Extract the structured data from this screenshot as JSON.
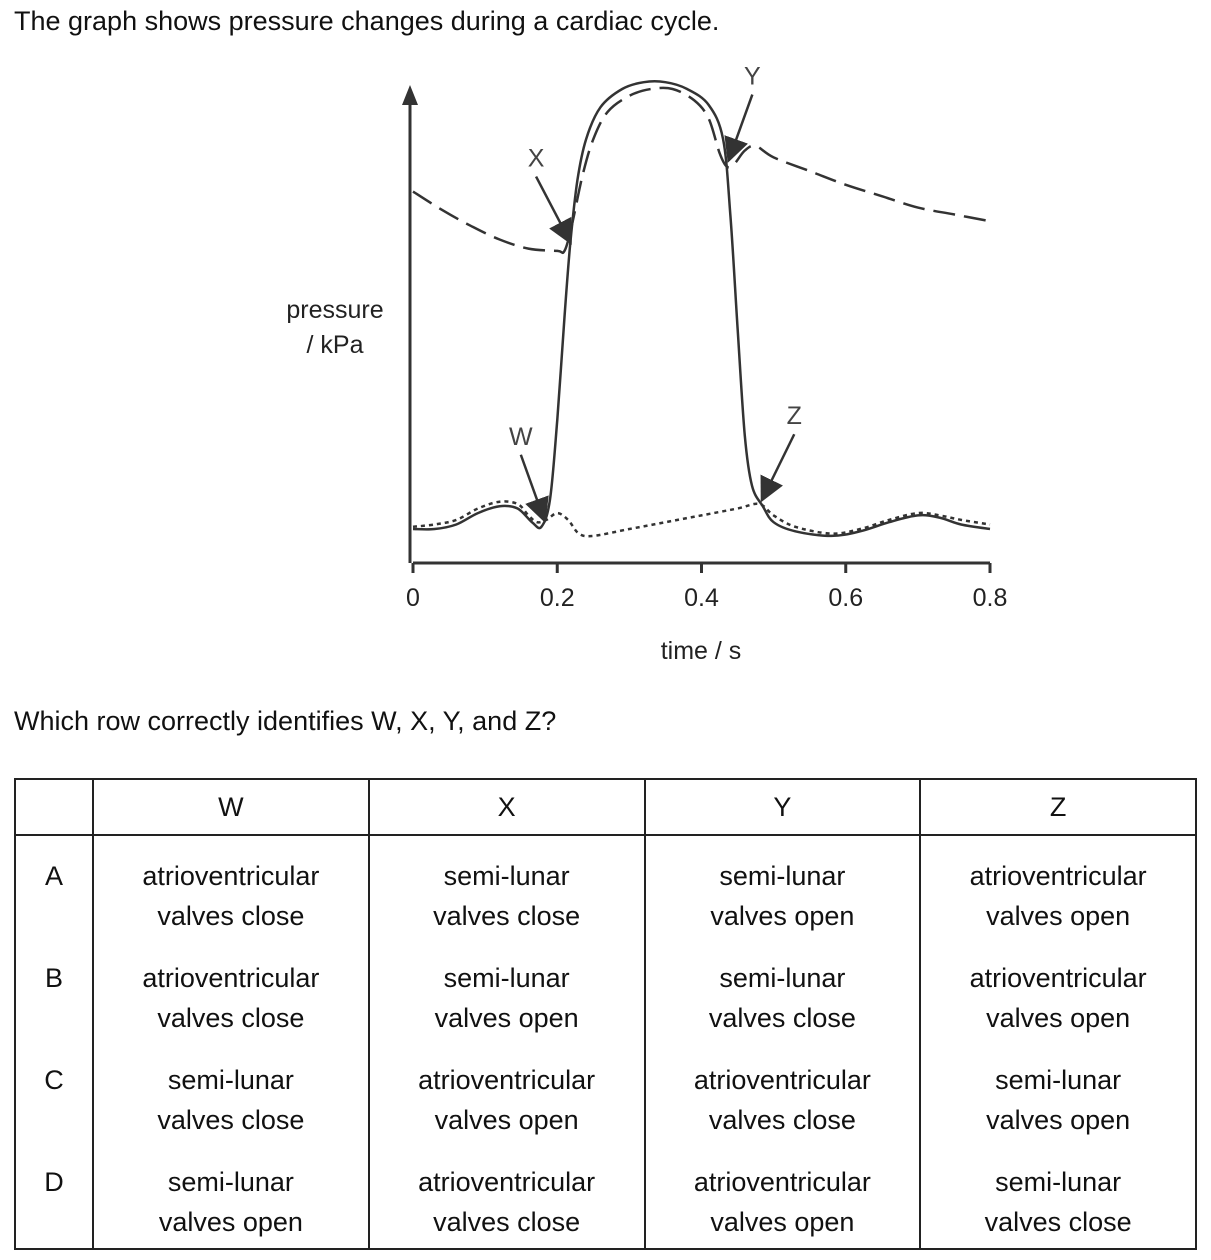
{
  "intro_text": "The graph shows pressure changes during a cardiac cycle.",
  "question_text": "Which row correctly identifies W, X, Y, and Z?",
  "chart_data": {
    "type": "line",
    "xlabel": "time / s",
    "ylabel_line1": "pressure",
    "ylabel_line2": "/ kPa",
    "x_ticks": [
      "0",
      "0.2",
      "0.4",
      "0.6",
      "0.8"
    ],
    "xlim": [
      0,
      0.8
    ],
    "series": [
      {
        "style": "solid",
        "points": [
          [
            0,
            0.07
          ],
          [
            0.03,
            0.07
          ],
          [
            0.06,
            0.09
          ],
          [
            0.09,
            0.14
          ],
          [
            0.12,
            0.17
          ],
          [
            0.145,
            0.16
          ],
          [
            0.165,
            0.1
          ],
          [
            0.178,
            0.08
          ],
          [
            0.19,
            0.2
          ],
          [
            0.2,
            0.55
          ],
          [
            0.21,
            1.0
          ],
          [
            0.218,
            1.32
          ],
          [
            0.228,
            1.6
          ],
          [
            0.24,
            1.78
          ],
          [
            0.26,
            1.92
          ],
          [
            0.29,
            2.0
          ],
          [
            0.32,
            2.03
          ],
          [
            0.35,
            2.03
          ],
          [
            0.38,
            2.0
          ],
          [
            0.41,
            1.93
          ],
          [
            0.43,
            1.78
          ],
          [
            0.44,
            1.45
          ],
          [
            0.45,
            0.95
          ],
          [
            0.46,
            0.48
          ],
          [
            0.47,
            0.26
          ],
          [
            0.485,
            0.17
          ],
          [
            0.5,
            0.1
          ],
          [
            0.53,
            0.06
          ],
          [
            0.58,
            0.04
          ],
          [
            0.62,
            0.06
          ],
          [
            0.66,
            0.1
          ],
          [
            0.7,
            0.13
          ],
          [
            0.73,
            0.12
          ],
          [
            0.76,
            0.09
          ],
          [
            0.8,
            0.07
          ]
        ]
      },
      {
        "style": "dashed",
        "points": [
          [
            0,
            1.55
          ],
          [
            0.04,
            1.47
          ],
          [
            0.08,
            1.4
          ],
          [
            0.12,
            1.34
          ],
          [
            0.16,
            1.3
          ],
          [
            0.2,
            1.29
          ],
          [
            0.21,
            1.29
          ],
          [
            0.22,
            1.4
          ],
          [
            0.235,
            1.62
          ],
          [
            0.25,
            1.78
          ],
          [
            0.27,
            1.9
          ],
          [
            0.3,
            1.97
          ],
          [
            0.33,
            2.0
          ],
          [
            0.36,
            2.0
          ],
          [
            0.39,
            1.95
          ],
          [
            0.41,
            1.87
          ],
          [
            0.425,
            1.72
          ],
          [
            0.435,
            1.66
          ],
          [
            0.445,
            1.67
          ],
          [
            0.46,
            1.73
          ],
          [
            0.475,
            1.75
          ],
          [
            0.5,
            1.7
          ],
          [
            0.55,
            1.64
          ],
          [
            0.6,
            1.58
          ],
          [
            0.65,
            1.53
          ],
          [
            0.7,
            1.48
          ],
          [
            0.75,
            1.45
          ],
          [
            0.8,
            1.42
          ]
        ]
      },
      {
        "style": "dotted",
        "points": [
          [
            0,
            0.08
          ],
          [
            0.03,
            0.09
          ],
          [
            0.06,
            0.11
          ],
          [
            0.09,
            0.16
          ],
          [
            0.12,
            0.19
          ],
          [
            0.145,
            0.18
          ],
          [
            0.16,
            0.13
          ],
          [
            0.172,
            0.1
          ],
          [
            0.185,
            0.11
          ],
          [
            0.2,
            0.14
          ],
          [
            0.215,
            0.11
          ],
          [
            0.23,
            0.05
          ],
          [
            0.25,
            0.04
          ],
          [
            0.3,
            0.07
          ],
          [
            0.35,
            0.1
          ],
          [
            0.4,
            0.13
          ],
          [
            0.45,
            0.16
          ],
          [
            0.48,
            0.18
          ],
          [
            0.5,
            0.13
          ],
          [
            0.53,
            0.08
          ],
          [
            0.58,
            0.05
          ],
          [
            0.62,
            0.07
          ],
          [
            0.66,
            0.11
          ],
          [
            0.7,
            0.14
          ],
          [
            0.73,
            0.13
          ],
          [
            0.76,
            0.11
          ],
          [
            0.8,
            0.09
          ]
        ]
      }
    ],
    "annotations": [
      {
        "label": "W",
        "x": 0.18,
        "y": 0.08
      },
      {
        "label": "X",
        "x": 0.215,
        "y": 1.3
      },
      {
        "label": "Y",
        "x": 0.44,
        "y": 1.66
      },
      {
        "label": "Z",
        "x": 0.487,
        "y": 0.17
      }
    ]
  },
  "table": {
    "headers": [
      "",
      "W",
      "X",
      "Y",
      "Z"
    ],
    "rows": [
      {
        "letter": "A",
        "cells": [
          [
            "atrioventricular",
            "valves close"
          ],
          [
            "semi-lunar",
            "valves close"
          ],
          [
            "semi-lunar",
            "valves open"
          ],
          [
            "atrioventricular",
            "valves open"
          ]
        ]
      },
      {
        "letter": "B",
        "cells": [
          [
            "atrioventricular",
            "valves close"
          ],
          [
            "semi-lunar",
            "valves open"
          ],
          [
            "semi-lunar",
            "valves close"
          ],
          [
            "atrioventricular",
            "valves open"
          ]
        ]
      },
      {
        "letter": "C",
        "cells": [
          [
            "semi-lunar",
            "valves close"
          ],
          [
            "atrioventricular",
            "valves open"
          ],
          [
            "atrioventricular",
            "valves close"
          ],
          [
            "semi-lunar",
            "valves open"
          ]
        ]
      },
      {
        "letter": "D",
        "cells": [
          [
            "semi-lunar",
            "valves open"
          ],
          [
            "atrioventricular",
            "valves close"
          ],
          [
            "atrioventricular",
            "valves open"
          ],
          [
            "semi-lunar",
            "valves close"
          ]
        ]
      }
    ]
  }
}
